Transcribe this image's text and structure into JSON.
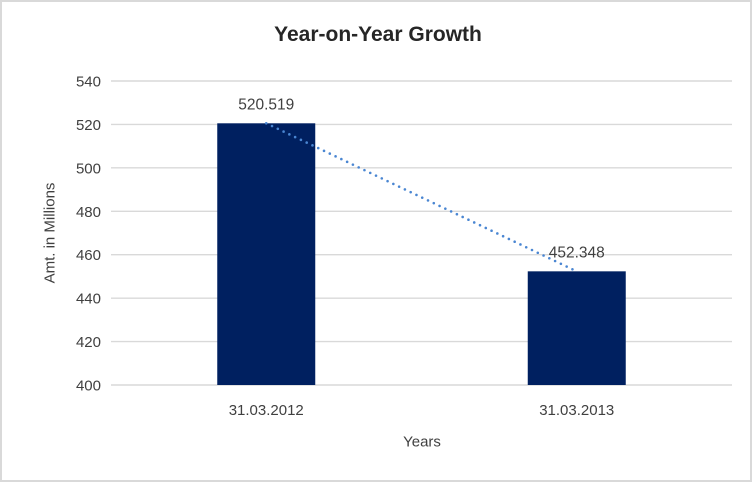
{
  "chart": {
    "colors": {
      "bar": "#002060",
      "trendline": "#4A86D2",
      "gridline": "#D9D9D9",
      "axis_line": "#D9D9D9",
      "tick_text": "#404040",
      "data_label_text": "#404040",
      "title_text": "#262626",
      "border": "#D9D9D9",
      "background": "#FFFFFF"
    }
  },
  "chart_data": {
    "type": "bar",
    "title": "Year-on-Year Growth",
    "xlabel": "Years",
    "ylabel": "Amt. in Millions",
    "categories": [
      "31.03.2012",
      "31.03.2013"
    ],
    "values": [
      520.519,
      452.348
    ],
    "data_labels": [
      "520.519",
      "452.348"
    ],
    "ylim": [
      400,
      540
    ],
    "ytick_step": 20,
    "yticks": [
      400,
      420,
      440,
      460,
      480,
      500,
      520,
      540
    ],
    "grid": true,
    "legend": false,
    "trendline": {
      "type": "linear",
      "style": "dotted",
      "from_value": 520.519,
      "to_value": 452.348
    }
  }
}
